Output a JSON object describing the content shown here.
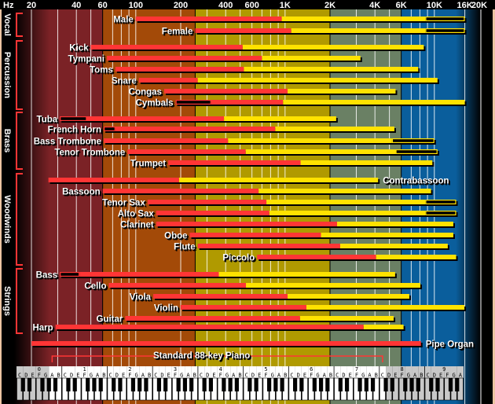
{
  "chart_data": {
    "type": "bar",
    "orientation": "horizontal-range",
    "x_axis": {
      "unit_label": "Hz",
      "scale": "log",
      "range": [
        20,
        20000
      ],
      "ticks": [
        {
          "value": 20,
          "label": "20"
        },
        {
          "value": 40,
          "label": "40"
        },
        {
          "value": 60,
          "label": "60"
        },
        {
          "value": 100,
          "label": "100"
        },
        {
          "value": 200,
          "label": "200"
        },
        {
          "value": 400,
          "label": "400"
        },
        {
          "value": 600,
          "label": "600"
        },
        {
          "value": 1000,
          "label": "1K"
        },
        {
          "value": 2000,
          "label": "2K"
        },
        {
          "value": 4000,
          "label": "4K"
        },
        {
          "value": 6000,
          "label": "6K"
        },
        {
          "value": 10000,
          "label": "10K"
        },
        {
          "value": 16000,
          "label": "16K"
        },
        {
          "value": 20000,
          "label": "20K"
        }
      ],
      "grid": true
    },
    "bands": [
      {
        "from": 20,
        "to": 60,
        "color": "#7b2226"
      },
      {
        "from": 60,
        "to": 250,
        "color": "#a34a08"
      },
      {
        "from": 250,
        "to": 2000,
        "color": "#b09a00"
      },
      {
        "from": 2000,
        "to": 6000,
        "color": "#6a8064"
      },
      {
        "from": 6000,
        "to": 20000,
        "color": "#0a5e9c"
      }
    ],
    "segment_colors": {
      "red": "#ff3535",
      "yellow": "#ffe200",
      "black": "#000000"
    },
    "groups": [
      {
        "name": "Vocal",
        "instruments": [
          {
            "name": "Male",
            "segments": [
              {
                "color": "red",
                "from": 100,
                "to": 950
              },
              {
                "color": "yellow",
                "from": 950,
                "to": 8700
              },
              {
                "color": "black",
                "from": 8700,
                "to": 16000
              }
            ]
          },
          {
            "name": "Female",
            "segments": [
              {
                "color": "red",
                "from": 250,
                "to": 1100
              },
              {
                "color": "yellow",
                "from": 1100,
                "to": 8700
              },
              {
                "color": "black",
                "from": 8700,
                "to": 16000
              }
            ]
          }
        ]
      },
      {
        "name": "Percussion",
        "instruments": [
          {
            "name": "Kick",
            "segments": [
              {
                "color": "red",
                "from": 50,
                "to": 520
              },
              {
                "color": "yellow",
                "from": 520,
                "to": 8500
              }
            ]
          },
          {
            "name": "Tympani",
            "segments": [
              {
                "color": "red",
                "from": 64,
                "to": 700
              },
              {
                "color": "yellow",
                "from": 700,
                "to": 3200
              }
            ]
          },
          {
            "name": "Toms",
            "segments": [
              {
                "color": "red",
                "from": 73,
                "to": 530
              },
              {
                "color": "yellow",
                "from": 530,
                "to": 7800
              }
            ]
          },
          {
            "name": "Snare",
            "segments": [
              {
                "color": "red",
                "from": 105,
                "to": 260
              },
              {
                "color": "yellow",
                "from": 260,
                "to": 10500
              }
            ]
          },
          {
            "name": "Congas",
            "segments": [
              {
                "color": "red",
                "from": 155,
                "to": 1040
              },
              {
                "color": "yellow",
                "from": 1040,
                "to": 5500
              }
            ]
          },
          {
            "name": "Cymbals",
            "segments": [
              {
                "color": "black",
                "from": 185,
                "to": 320
              },
              {
                "color": "red",
                "from": 320,
                "to": 970
              },
              {
                "color": "yellow",
                "from": 970,
                "to": 16000
              }
            ]
          }
        ]
      },
      {
        "name": "Brass",
        "instruments": [
          {
            "name": "Tuba",
            "segments": [
              {
                "color": "black",
                "from": 31,
                "to": 47
              },
              {
                "color": "red",
                "from": 47,
                "to": 390
              },
              {
                "color": "yellow",
                "from": 390,
                "to": 2200
              }
            ]
          },
          {
            "name": "French Horn",
            "segments": [
              {
                "color": "black",
                "from": 61,
                "to": 73
              },
              {
                "color": "red",
                "from": 73,
                "to": 860
              },
              {
                "color": "yellow",
                "from": 860,
                "to": 5400
              }
            ]
          },
          {
            "name": "Bass Trombone",
            "segments": [
              {
                "color": "red",
                "from": 61,
                "to": 415
              },
              {
                "color": "yellow",
                "from": 415,
                "to": 5200
              },
              {
                "color": "black",
                "from": 5200,
                "to": 10000
              }
            ]
          },
          {
            "name": "Tenor Trombone",
            "segments": [
              {
                "color": "red",
                "from": 88,
                "to": 545
              },
              {
                "color": "yellow",
                "from": 545,
                "to": 5500
              },
              {
                "color": "black",
                "from": 5500,
                "to": 10500
              }
            ]
          },
          {
            "name": "Trumpet",
            "segments": [
              {
                "color": "red",
                "from": 165,
                "to": 1270
              },
              {
                "color": "yellow",
                "from": 1270,
                "to": 9700
              }
            ]
          }
        ]
      },
      {
        "name": "Woodwinds",
        "instruments": [
          {
            "name": "Contrabassoon",
            "segments": [
              {
                "color": "red",
                "from": 26,
                "to": 195
              },
              {
                "color": "yellow",
                "from": 195,
                "to": 4200
              }
            ]
          },
          {
            "name": "Bassoon",
            "segments": [
              {
                "color": "red",
                "from": 60,
                "to": 665
              },
              {
                "color": "yellow",
                "from": 665,
                "to": 9500
              }
            ]
          },
          {
            "name": "Tenor Sax",
            "segments": [
              {
                "color": "red",
                "from": 120,
                "to": 750
              },
              {
                "color": "yellow",
                "from": 750,
                "to": 8700
              },
              {
                "color": "black",
                "from": 8700,
                "to": 14000
              }
            ]
          },
          {
            "name": "Alto Sax",
            "segments": [
              {
                "color": "red",
                "from": 137,
                "to": 785
              },
              {
                "color": "yellow",
                "from": 785,
                "to": 8700
              },
              {
                "color": "black",
                "from": 8700,
                "to": 14000
              }
            ]
          },
          {
            "name": "Clarinet",
            "segments": [
              {
                "color": "red",
                "from": 137,
                "to": 2230
              },
              {
                "color": "yellow",
                "from": 2230,
                "to": 13400
              }
            ]
          },
          {
            "name": "Oboe",
            "segments": [
              {
                "color": "red",
                "from": 230,
                "to": 1740
              },
              {
                "color": "yellow",
                "from": 1740,
                "to": 13400
              }
            ]
          },
          {
            "name": "Flute",
            "segments": [
              {
                "color": "red",
                "from": 260,
                "to": 2340
              },
              {
                "color": "yellow",
                "from": 2340,
                "to": 12300
              }
            ]
          },
          {
            "name": "Piccolo",
            "segments": [
              {
                "color": "red",
                "from": 650,
                "to": 4070
              },
              {
                "color": "yellow",
                "from": 4070,
                "to": 14000
              }
            ]
          }
        ]
      },
      {
        "name": "Strings",
        "instruments": [
          {
            "name": "Bass",
            "segments": [
              {
                "color": "black",
                "from": 31,
                "to": 42
              },
              {
                "color": "red",
                "from": 42,
                "to": 360
              },
              {
                "color": "yellow",
                "from": 360,
                "to": 5460
              }
            ]
          },
          {
            "name": "Cello",
            "segments": [
              {
                "color": "red",
                "from": 66,
                "to": 547
              },
              {
                "color": "yellow",
                "from": 547,
                "to": 8060
              }
            ]
          },
          {
            "name": "Viola",
            "segments": [
              {
                "color": "red",
                "from": 131,
                "to": 1040
              },
              {
                "color": "yellow",
                "from": 1040,
                "to": 6800
              }
            ]
          },
          {
            "name": "Violin",
            "segments": [
              {
                "color": "red",
                "from": 200,
                "to": 1390
              },
              {
                "color": "yellow",
                "from": 1390,
                "to": 15900
              }
            ]
          },
          {
            "name": "Guitar",
            "segments": [
              {
                "color": "red",
                "from": 85,
                "to": 1260
              },
              {
                "color": "yellow",
                "from": 1260,
                "to": 5340
              }
            ]
          },
          {
            "name": "Harp",
            "segments": [
              {
                "color": "red",
                "from": 29,
                "to": 3360
              },
              {
                "color": "yellow",
                "from": 3360,
                "to": 6220
              }
            ]
          }
        ]
      }
    ],
    "ungrouped": [
      {
        "name": "Pipe Organ",
        "segments": [
          {
            "color": "red",
            "from": 20,
            "to": 8130
          }
        ]
      }
    ],
    "piano": {
      "label": "Standard 88-key Piano",
      "range_notes": [
        "A0",
        "C8"
      ],
      "octaves": [
        "0",
        "1",
        "2",
        "3",
        "4",
        "5",
        "6",
        "7",
        "8",
        "9"
      ],
      "note_letters": [
        "C",
        "D",
        "E",
        "F",
        "G",
        "A",
        "B"
      ],
      "last_octave_letters": [
        "C",
        "D",
        "E",
        "F",
        "G",
        "A"
      ]
    }
  }
}
